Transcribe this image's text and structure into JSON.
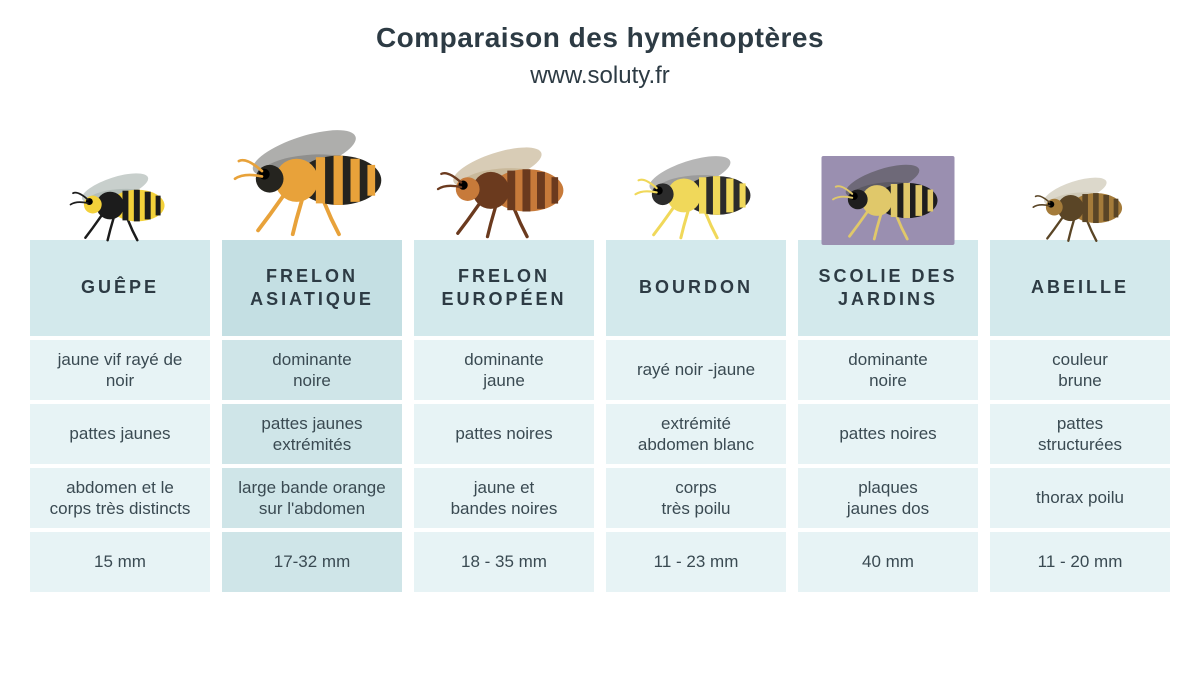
{
  "title": "Comparaison des hyménoptères",
  "url": "www.soluty.fr",
  "background_color": "#ffffff",
  "text_color": "#2d3b44",
  "columns": [
    {
      "name": "GUÊPE",
      "header_bg": "#d3e9ec",
      "cell_bg": "#e7f3f5",
      "rows": [
        "jaune vif rayé de\nnoir",
        "pattes jaunes",
        "abdomen et le\ncorps très distincts",
        "15 mm"
      ],
      "insect": {
        "body_primary": "#f3d13a",
        "body_secondary": "#1c1c1c",
        "wing": "#9aa7a2",
        "scale": 0.9
      }
    },
    {
      "name": "FRELON\nASIATIQUE",
      "header_bg": "#c4dfe3",
      "cell_bg": "#cfe5e8",
      "rows": [
        "dominante\nnoire",
        "pattes jaunes\nextrémités",
        "large bande orange\nsur l'abdomen",
        "17-32 mm"
      ],
      "insect": {
        "body_primary": "#25241f",
        "body_secondary": "#e8a23a",
        "wing": "#6b6b68",
        "scale": 1.4
      }
    },
    {
      "name": "FRELON\nEUROPÉEN",
      "header_bg": "#d3e9ec",
      "cell_bg": "#e7f3f5",
      "rows": [
        "dominante\njaune",
        "pattes noires",
        "jaune et\nbandes noires",
        "18 - 35 mm"
      ],
      "insect": {
        "body_primary": "#c77a3a",
        "body_secondary": "#6b3a1e",
        "wing": "#b8a27a",
        "scale": 1.2
      }
    },
    {
      "name": "BOURDON",
      "header_bg": "#d3e9ec",
      "cell_bg": "#e7f3f5",
      "rows": [
        "rayé noir -jaune",
        "extrémité\nabdomen blanc",
        "corps\ntrès poilu",
        "11 - 23 mm"
      ],
      "insect": {
        "body_primary": "#2b2b2b",
        "body_secondary": "#f0d85a",
        "wing": "#7a7a7a",
        "scale": 1.1
      }
    },
    {
      "name": "SCOLIE DES\nJARDINS",
      "header_bg": "#d3e9ec",
      "cell_bg": "#e7f3f5",
      "rows": [
        "dominante\nnoire",
        "pattes noires",
        "plaques\njaunes dos",
        "40 mm"
      ],
      "insect": {
        "body_primary": "#1e1e1e",
        "body_secondary": "#e0c86a",
        "wing": "#4a4a4a",
        "scale": 1.0,
        "photo_bg": "#9a8fb0"
      }
    },
    {
      "name": "ABEILLE",
      "header_bg": "#d3e9ec",
      "cell_bg": "#e7f3f5",
      "rows": [
        "couleur\nbrune",
        "pattes\nstructurées",
        "thorax poilu",
        "11 - 20 mm"
      ],
      "insect": {
        "body_primary": "#a47b3a",
        "body_secondary": "#5a4526",
        "wing": "#bfb8a0",
        "scale": 0.85
      }
    }
  ]
}
